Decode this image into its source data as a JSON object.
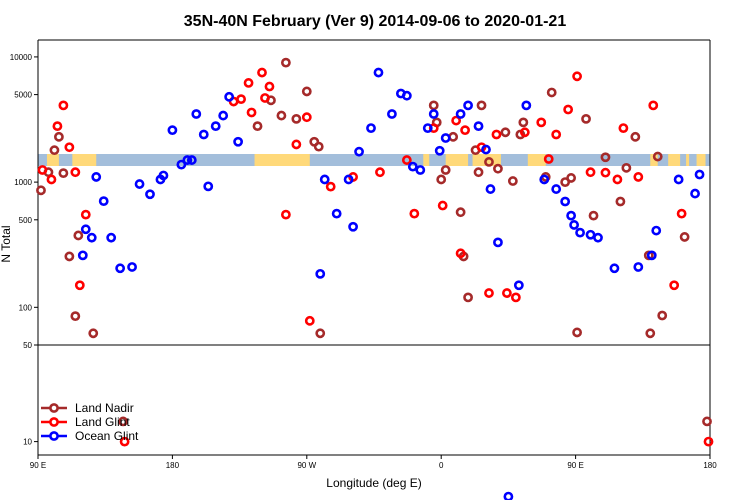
{
  "chart_data": {
    "type": "scatter",
    "title": "35N-40N February (Ver 9)   2014-09-06 to 2020-01-21",
    "xlabel": "Longitude (deg E)",
    "ylabel": "N Total",
    "x_ticks": [
      {
        "value": 90,
        "label": "90 E"
      },
      {
        "value": 180,
        "label": "180"
      },
      {
        "value": 270,
        "label": "90 W"
      },
      {
        "value": 360,
        "label": "0"
      },
      {
        "value": 450,
        "label": "90 E"
      },
      {
        "value": 540,
        "label": "180"
      }
    ],
    "upper_y_ticks": [
      {
        "value": 50,
        "label": "50"
      },
      {
        "value": 100,
        "label": "100"
      },
      {
        "value": 500,
        "label": "500"
      },
      {
        "value": 1000,
        "label": "1000"
      },
      {
        "value": 5000,
        "label": "5000"
      },
      {
        "value": 10000,
        "label": "10000"
      }
    ],
    "lower_y_ticks": [
      {
        "value": 10,
        "label": "10"
      }
    ],
    "x_range": [
      90,
      540
    ],
    "upper_y_range": [
      50,
      12000
    ],
    "upper_y_scale": "log",
    "lower_y_range": [
      8,
      50
    ],
    "lower_y_scale": "log",
    "grid": false,
    "legend_position": "bottom-left",
    "series": [
      {
        "name": "Land Nadir",
        "color": "#A52A2A",
        "points": [
          [
            92,
            860
          ],
          [
            97,
            1200
          ],
          [
            101,
            1800
          ],
          [
            104,
            2300
          ],
          [
            107,
            1180
          ],
          [
            111,
            255
          ],
          [
            115,
            85
          ],
          [
            117,
            375
          ],
          [
            127,
            62
          ],
          [
            147,
            14
          ],
          [
            237,
            2800
          ],
          [
            246,
            4500
          ],
          [
            253,
            3400
          ],
          [
            256,
            9000
          ],
          [
            263,
            3200
          ],
          [
            270,
            5300
          ],
          [
            275,
            2100
          ],
          [
            278,
            1920
          ],
          [
            279,
            62
          ],
          [
            375,
            255
          ],
          [
            355,
            4100
          ],
          [
            357,
            3000
          ],
          [
            360,
            1050
          ],
          [
            363,
            1250
          ],
          [
            368,
            2300
          ],
          [
            373,
            575
          ],
          [
            378,
            120
          ],
          [
            383,
            1800
          ],
          [
            385,
            1200
          ],
          [
            387,
            4100
          ],
          [
            392,
            1450
          ],
          [
            398,
            1280
          ],
          [
            403,
            2500
          ],
          [
            408,
            1020
          ],
          [
            413,
            2400
          ],
          [
            415,
            3000
          ],
          [
            430,
            1100
          ],
          [
            434,
            5200
          ],
          [
            443,
            1000
          ],
          [
            451,
            63
          ],
          [
            447,
            1080
          ],
          [
            457,
            3200
          ],
          [
            462,
            540
          ],
          [
            470,
            1580
          ],
          [
            480,
            700
          ],
          [
            484,
            1300
          ],
          [
            490,
            2300
          ],
          [
            505,
            1600
          ],
          [
            523,
            365
          ],
          [
            500,
            62
          ],
          [
            508,
            86
          ],
          [
            499,
            260
          ],
          [
            538,
            14
          ]
        ]
      },
      {
        "name": "Land Glint",
        "color": "#FF0000",
        "points": [
          [
            93,
            1250
          ],
          [
            99,
            1050
          ],
          [
            103,
            2800
          ],
          [
            107,
            4100
          ],
          [
            111,
            1900
          ],
          [
            115,
            1200
          ],
          [
            118,
            150
          ],
          [
            122,
            550
          ],
          [
            148,
            10
          ],
          [
            221,
            4400
          ],
          [
            226,
            4600
          ],
          [
            231,
            6200
          ],
          [
            233,
            3600
          ],
          [
            240,
            7500
          ],
          [
            242,
            4700
          ],
          [
            245,
            5800
          ],
          [
            256,
            550
          ],
          [
            263,
            2000
          ],
          [
            270,
            3300
          ],
          [
            272,
            78
          ],
          [
            286,
            920
          ],
          [
            301,
            1100
          ],
          [
            319,
            1200
          ],
          [
            337,
            1500
          ],
          [
            342,
            560
          ],
          [
            355,
            2700
          ],
          [
            361,
            650
          ],
          [
            370,
            3100
          ],
          [
            373,
            270
          ],
          [
            376,
            2600
          ],
          [
            387,
            1900
          ],
          [
            392,
            130
          ],
          [
            397,
            2400
          ],
          [
            404,
            130
          ],
          [
            410,
            120
          ],
          [
            416,
            2500
          ],
          [
            427,
            3000
          ],
          [
            432,
            1530
          ],
          [
            437,
            2400
          ],
          [
            445,
            3800
          ],
          [
            451,
            7000
          ],
          [
            460,
            1200
          ],
          [
            470,
            1190
          ],
          [
            478,
            1050
          ],
          [
            482,
            2700
          ],
          [
            492,
            1100
          ],
          [
            502,
            4100
          ],
          [
            516,
            150
          ],
          [
            521,
            560
          ],
          [
            539,
            10
          ]
        ]
      },
      {
        "name": "Ocean Glint",
        "color": "#0000FF",
        "points": [
          [
            120,
            260
          ],
          [
            122,
            420
          ],
          [
            126,
            360
          ],
          [
            129,
            1100
          ],
          [
            134,
            705
          ],
          [
            139,
            360
          ],
          [
            145,
            205
          ],
          [
            153,
            210
          ],
          [
            158,
            965
          ],
          [
            165,
            800
          ],
          [
            172,
            1050
          ],
          [
            174,
            1130
          ],
          [
            180,
            2600
          ],
          [
            186,
            1380
          ],
          [
            190,
            1500
          ],
          [
            193,
            1500
          ],
          [
            196,
            3500
          ],
          [
            201,
            2400
          ],
          [
            204,
            925
          ],
          [
            209,
            2800
          ],
          [
            214,
            3400
          ],
          [
            218,
            4800
          ],
          [
            224,
            2100
          ],
          [
            279,
            185
          ],
          [
            282,
            1050
          ],
          [
            290,
            560
          ],
          [
            298,
            1050
          ],
          [
            301,
            440
          ],
          [
            305,
            1750
          ],
          [
            313,
            2700
          ],
          [
            318,
            7500
          ],
          [
            327,
            3500
          ],
          [
            333,
            5100
          ],
          [
            337,
            4900
          ],
          [
            341,
            1330
          ],
          [
            346,
            1250
          ],
          [
            351,
            2700
          ],
          [
            355,
            3500
          ],
          [
            359,
            1780
          ],
          [
            363,
            2250
          ],
          [
            373,
            3500
          ],
          [
            378,
            4100
          ],
          [
            385,
            2800
          ],
          [
            390,
            1820
          ],
          [
            393,
            880
          ],
          [
            398,
            330
          ],
          [
            405,
            4
          ],
          [
            412,
            150
          ],
          [
            417,
            4100
          ],
          [
            429,
            1050
          ],
          [
            437,
            880
          ],
          [
            443,
            700
          ],
          [
            447,
            540
          ],
          [
            449,
            455
          ],
          [
            453,
            395
          ],
          [
            460,
            380
          ],
          [
            465,
            360
          ],
          [
            476,
            205
          ],
          [
            492,
            210
          ],
          [
            501,
            260
          ],
          [
            504,
            410
          ],
          [
            519,
            1050
          ],
          [
            530,
            810
          ],
          [
            533,
            1150
          ]
        ]
      }
    ]
  },
  "map_strip": {
    "ocean_color": "#A3BEDB",
    "land_color": "#FFD97A"
  }
}
